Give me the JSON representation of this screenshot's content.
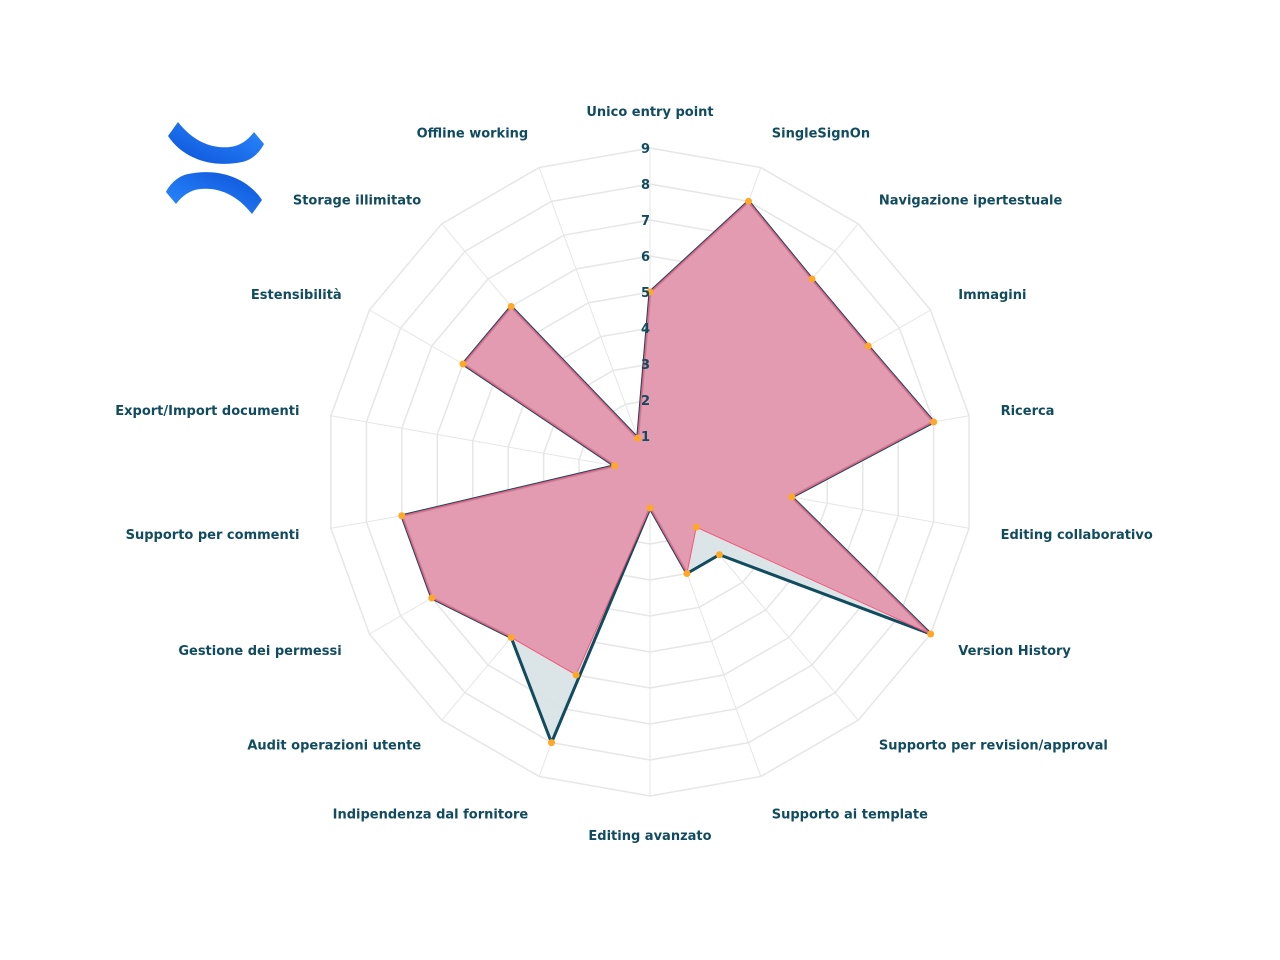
{
  "chart_data": {
    "type": "radar",
    "title": "",
    "categories": [
      "Unico entry point",
      "SingleSignOn",
      "Navigazione ipertestuale",
      "Immagini",
      "Ricerca",
      "Editing collaborativo",
      "Version History",
      "Supporto per revision/approval",
      "Supporto ai template",
      "Editing avanzato",
      "Indipendenza dal fornitore",
      "Audit operazioni utente",
      "Gestione dei permessi",
      "Supporto per commenti",
      "Export/Import documenti",
      "Estensibilità",
      "Storage illimitato",
      "Offline working"
    ],
    "rlim": [
      0,
      9
    ],
    "ticks": [
      "1",
      "2",
      "3",
      "4",
      "5",
      "6",
      "7",
      "8",
      "9"
    ],
    "grid": true,
    "series": [
      {
        "values": [
          5,
          8,
          7,
          7,
          8,
          4,
          9,
          3,
          3,
          1,
          8,
          6,
          7,
          7,
          1,
          6,
          6,
          1
        ],
        "fill": "#d7e2e6",
        "fill_opacity": 0.9,
        "stroke": "#114b5f",
        "stroke_width": 3
      },
      {
        "values": [
          5,
          8,
          7,
          7,
          8,
          4,
          9,
          2,
          3,
          1,
          6,
          6,
          7,
          7,
          1,
          6,
          6,
          1
        ],
        "fill": "#e38ea6",
        "fill_opacity": 0.85,
        "stroke": "#f4587a",
        "stroke_width": 1
      }
    ],
    "marker_color": "#ffa726",
    "grid_color": "#e6e6e6",
    "label_color": "#114b5f"
  },
  "logo": {
    "name": "Confluence",
    "color_dark": "#0b52d8",
    "color_light": "#2d8cff"
  }
}
